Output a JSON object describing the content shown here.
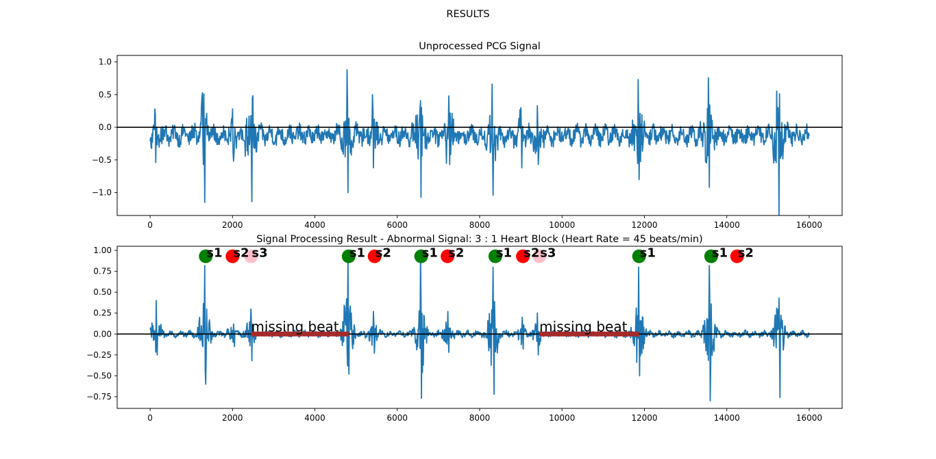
{
  "figure": {
    "suptitle": "RESULTS"
  },
  "chart_data": [
    {
      "type": "line",
      "title": "Unprocessed PCG Signal",
      "xlabel": "",
      "ylabel": "",
      "xlim": [
        -800,
        16800
      ],
      "ylim": [
        -1.35,
        1.1
      ],
      "xticks": [
        0,
        2000,
        4000,
        6000,
        8000,
        10000,
        12000,
        14000,
        16000
      ],
      "xtick_labels": [
        "0",
        "2000",
        "4000",
        "6000",
        "8000",
        "10000",
        "12000",
        "14000",
        "16000"
      ],
      "yticks": [
        1.0,
        0.5,
        0.0,
        -0.5,
        -1.0
      ],
      "ytick_labels": [
        "1.0",
        "0.5",
        "0.0",
        "−0.5",
        "−1.0"
      ],
      "hline": {
        "y": 0,
        "color": "#000000"
      },
      "series": [
        {
          "color": "#1f77b4",
          "x_range": [
            0,
            16000
          ],
          "baseline": -0.12,
          "noise_amp": 0.12,
          "events": [
            {
              "x": 120,
              "hi": 0.4,
              "lo": -0.42
            },
            {
              "x": 1300,
              "hi": 0.63,
              "lo": -1.03
            },
            {
              "x": 2000,
              "hi": 0.4,
              "lo": -0.4
            },
            {
              "x": 2450,
              "hi": 0.3,
              "lo": -1.02
            },
            {
              "x": 4780,
              "hi": 1.0,
              "lo": -0.88
            },
            {
              "x": 5400,
              "hi": 0.62,
              "lo": -0.5
            },
            {
              "x": 6550,
              "hi": 0.4,
              "lo": -0.95
            },
            {
              "x": 7250,
              "hi": 0.6,
              "lo": -0.45
            },
            {
              "x": 8300,
              "hi": 0.78,
              "lo": -0.92
            },
            {
              "x": 9000,
              "hi": 0.42,
              "lo": -0.5
            },
            {
              "x": 9400,
              "hi": 0.45,
              "lo": -0.45
            },
            {
              "x": 11850,
              "hi": 0.85,
              "lo": -0.68
            },
            {
              "x": 13550,
              "hi": 0.88,
              "lo": -0.8
            },
            {
              "x": 15250,
              "hi": 0.42,
              "lo": -1.22
            }
          ]
        }
      ]
    },
    {
      "type": "line",
      "title": "Signal Processing Result - Abnormal Signal: 3 : 1 Heart Block (Heart Rate = 45 beats/min)",
      "xlabel": "",
      "ylabel": "",
      "xlim": [
        -800,
        16800
      ],
      "ylim": [
        -0.89,
        1.05
      ],
      "xticks": [
        0,
        2000,
        4000,
        6000,
        8000,
        10000,
        12000,
        14000,
        16000
      ],
      "xtick_labels": [
        "0",
        "2000",
        "4000",
        "6000",
        "8000",
        "10000",
        "12000",
        "14000",
        "16000"
      ],
      "yticks": [
        1.0,
        0.75,
        0.5,
        0.25,
        0.0,
        -0.25,
        -0.5,
        -0.75
      ],
      "ytick_labels": [
        "1.00",
        "0.75",
        "0.50",
        "0.25",
        "0.00",
        "−0.25",
        "−0.50",
        "−0.75"
      ],
      "hline": {
        "y": 0,
        "color": "#000000"
      },
      "series": [
        {
          "color": "#1f77b4",
          "x_range": [
            0,
            16000
          ],
          "baseline": 0.0,
          "noise_amp": 0.03,
          "events": [
            {
              "x": 150,
              "hi": 0.4,
              "lo": -0.25
            },
            {
              "x": 1330,
              "hi": 0.82,
              "lo": -0.6
            },
            {
              "x": 2020,
              "hi": 0.12,
              "lo": -0.15
            },
            {
              "x": 2450,
              "hi": 0.3,
              "lo": -0.32
            },
            {
              "x": 4800,
              "hi": 0.99,
              "lo": -0.48
            },
            {
              "x": 5420,
              "hi": 0.27,
              "lo": -0.23
            },
            {
              "x": 6570,
              "hi": 0.97,
              "lo": -0.77
            },
            {
              "x": 7230,
              "hi": 0.27,
              "lo": -0.22
            },
            {
              "x": 8330,
              "hi": 0.8,
              "lo": -0.72
            },
            {
              "x": 9040,
              "hi": 0.2,
              "lo": -0.18
            },
            {
              "x": 9400,
              "hi": 0.25,
              "lo": -0.25
            },
            {
              "x": 11860,
              "hi": 0.8,
              "lo": -0.5
            },
            {
              "x": 13580,
              "hi": 0.82,
              "lo": -0.8
            },
            {
              "x": 15270,
              "hi": 0.43,
              "lo": -0.76
            }
          ]
        }
      ],
      "markers": [
        {
          "x": 1350,
          "y": 0.93,
          "label": "s1",
          "color": "#008000"
        },
        {
          "x": 2000,
          "y": 0.93,
          "label": "s2",
          "color": "#ff0000"
        },
        {
          "x": 2450,
          "y": 0.93,
          "label": "s3",
          "color": "#ffc0cb"
        },
        {
          "x": 4820,
          "y": 0.93,
          "label": "s1",
          "color": "#008000"
        },
        {
          "x": 5450,
          "y": 0.93,
          "label": "s2",
          "color": "#ff0000"
        },
        {
          "x": 6580,
          "y": 0.93,
          "label": "s1",
          "color": "#008000"
        },
        {
          "x": 7220,
          "y": 0.93,
          "label": "s2",
          "color": "#ff0000"
        },
        {
          "x": 8380,
          "y": 0.93,
          "label": "s1",
          "color": "#008000"
        },
        {
          "x": 9050,
          "y": 0.93,
          "label": "s2",
          "color": "#ff0000"
        },
        {
          "x": 9450,
          "y": 0.93,
          "label": "s3",
          "color": "#ffc0cb"
        },
        {
          "x": 11870,
          "y": 0.93,
          "label": "s1",
          "color": "#008000"
        },
        {
          "x": 13620,
          "y": 0.93,
          "label": "s1",
          "color": "#008000"
        },
        {
          "x": 14250,
          "y": 0.93,
          "label": "s2",
          "color": "#ff0000"
        }
      ],
      "missing_beats": [
        {
          "x_start": 2450,
          "x_end": 4820,
          "label": "missing beat",
          "color": "#a52a2a"
        },
        {
          "x_start": 9450,
          "x_end": 11870,
          "label": "missing beat",
          "color": "#a52a2a"
        }
      ]
    }
  ]
}
